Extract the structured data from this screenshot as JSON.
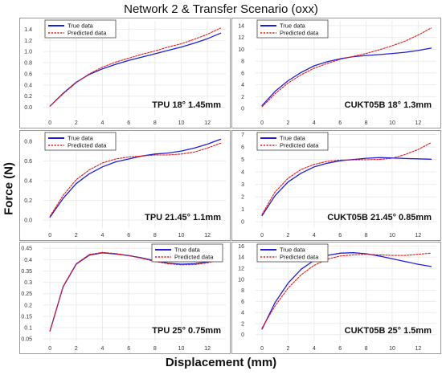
{
  "figure": {
    "title": "Network 2 & Transfer Scenario (oxx)",
    "ylabel": "Force (N)",
    "xlabel": "Displacement (mm)"
  },
  "colors": {
    "true_data": "#1f1fd6",
    "predicted_data": "#e01b1b",
    "border": "#9a9a9a",
    "grid": "#ebebeb"
  },
  "chart_data": [
    {
      "type": "line",
      "annotation": "TPU 18° 1.45mm",
      "xlim": [
        -0.5,
        13.4
      ],
      "ylim": [
        -0.15,
        1.55
      ],
      "xticks": [
        0,
        2,
        4,
        6,
        8,
        10,
        12
      ],
      "yticks": [
        0.0,
        0.2,
        0.4,
        0.6,
        0.8,
        1.0,
        1.2,
        1.4
      ],
      "ytick_labels": [
        "0.0",
        "0.2",
        "0.4",
        "0.6",
        "0.8",
        "1.0",
        "1.2",
        "1.4"
      ],
      "legend": "top-left",
      "series": [
        {
          "name": "True data",
          "style": "solid",
          "x": [
            0,
            1,
            2,
            3,
            4,
            5,
            6,
            7,
            8,
            9,
            10,
            11,
            12,
            13
          ],
          "y": [
            0.02,
            0.25,
            0.45,
            0.59,
            0.69,
            0.77,
            0.84,
            0.9,
            0.96,
            1.02,
            1.08,
            1.15,
            1.23,
            1.33
          ]
        },
        {
          "name": "Predicted data",
          "style": "dashed",
          "x": [
            0,
            1,
            2,
            3,
            4,
            5,
            6,
            7,
            8,
            9,
            10,
            11,
            12,
            13
          ],
          "y": [
            0.02,
            0.24,
            0.44,
            0.6,
            0.72,
            0.81,
            0.88,
            0.95,
            1.01,
            1.08,
            1.14,
            1.22,
            1.31,
            1.42
          ]
        }
      ]
    },
    {
      "type": "line",
      "annotation": "CUKT05B 18° 1.3mm",
      "xlim": [
        -0.5,
        13.4
      ],
      "ylim": [
        -1.2,
        14.8
      ],
      "xticks": [
        0,
        2,
        4,
        6,
        8,
        10,
        12
      ],
      "yticks": [
        0,
        2,
        4,
        6,
        8,
        10,
        12,
        14
      ],
      "ytick_labels": [
        "0",
        "2",
        "4",
        "6",
        "8",
        "10",
        "12",
        "14"
      ],
      "legend": "top-left",
      "series": [
        {
          "name": "True data",
          "style": "solid",
          "x": [
            0,
            1,
            2,
            3,
            4,
            5,
            6,
            7,
            8,
            9,
            10,
            11,
            12,
            13
          ],
          "y": [
            0.5,
            2.9,
            4.7,
            6.1,
            7.2,
            7.9,
            8.4,
            8.75,
            8.95,
            9.1,
            9.3,
            9.5,
            9.8,
            10.2
          ]
        },
        {
          "name": "Predicted data",
          "style": "dashed",
          "x": [
            0,
            1,
            2,
            3,
            4,
            5,
            6,
            7,
            8,
            9,
            10,
            11,
            12,
            13
          ],
          "y": [
            0.3,
            2.5,
            4.3,
            5.7,
            6.8,
            7.6,
            8.3,
            8.8,
            9.3,
            9.9,
            10.6,
            11.4,
            12.4,
            13.6
          ]
        }
      ]
    },
    {
      "type": "line",
      "annotation": "TPU 21.45° 1.1mm",
      "xlim": [
        -0.5,
        13.4
      ],
      "ylim": [
        -0.08,
        0.88
      ],
      "xticks": [
        0,
        2,
        4,
        6,
        8,
        10,
        12
      ],
      "yticks": [
        0.0,
        0.2,
        0.4,
        0.6,
        0.8
      ],
      "ytick_labels": [
        "0.0",
        "0.2",
        "0.4",
        "0.6",
        "0.8"
      ],
      "legend": "top-left",
      "series": [
        {
          "name": "True data",
          "style": "solid",
          "x": [
            0,
            1,
            2,
            3,
            4,
            5,
            6,
            7,
            8,
            9,
            10,
            11,
            12,
            13
          ],
          "y": [
            0.03,
            0.22,
            0.37,
            0.47,
            0.54,
            0.59,
            0.62,
            0.65,
            0.67,
            0.68,
            0.7,
            0.73,
            0.77,
            0.82
          ]
        },
        {
          "name": "Predicted data",
          "style": "dashed",
          "x": [
            0,
            1,
            2,
            3,
            4,
            5,
            6,
            7,
            8,
            9,
            10,
            11,
            12,
            13
          ],
          "y": [
            0.04,
            0.25,
            0.41,
            0.51,
            0.58,
            0.62,
            0.64,
            0.65,
            0.66,
            0.66,
            0.67,
            0.69,
            0.73,
            0.78
          ]
        }
      ]
    },
    {
      "type": "line",
      "annotation": "CUKT05B 21.45° 0.85mm",
      "xlim": [
        -0.5,
        13.4
      ],
      "ylim": [
        -0.5,
        7.1
      ],
      "xticks": [
        0,
        2,
        4,
        6,
        8,
        10,
        12
      ],
      "yticks": [
        0,
        1,
        2,
        3,
        4,
        5,
        6,
        7
      ],
      "ytick_labels": [
        "0",
        "1",
        "2",
        "3",
        "4",
        "5",
        "6",
        "7"
      ],
      "legend": "top-left",
      "series": [
        {
          "name": "True data",
          "style": "solid",
          "x": [
            0,
            1,
            2,
            3,
            4,
            5,
            6,
            7,
            8,
            9,
            10,
            11,
            12,
            13
          ],
          "y": [
            0.5,
            2.1,
            3.2,
            3.9,
            4.4,
            4.7,
            4.9,
            5.0,
            5.1,
            5.15,
            5.12,
            5.08,
            5.05,
            5.02
          ]
        },
        {
          "name": "Predicted data",
          "style": "dashed",
          "x": [
            0,
            1,
            2,
            3,
            4,
            5,
            6,
            7,
            8,
            9,
            10,
            11,
            12,
            13
          ],
          "y": [
            0.6,
            2.4,
            3.5,
            4.2,
            4.6,
            4.85,
            4.95,
            4.97,
            4.98,
            5.0,
            5.1,
            5.4,
            5.8,
            6.35
          ]
        }
      ]
    },
    {
      "type": "line",
      "annotation": "TPU 25° 0.75mm",
      "xlim": [
        -0.5,
        13.4
      ],
      "ylim": [
        0.04,
        0.465
      ],
      "xticks": [
        0,
        2,
        4,
        6,
        8,
        10,
        12
      ],
      "yticks": [
        0.05,
        0.1,
        0.15,
        0.2,
        0.25,
        0.3,
        0.35,
        0.4,
        0.45
      ],
      "ytick_labels": [
        "0.05",
        "0.1",
        "0.15",
        "0.2",
        "0.25",
        "0.3",
        "0.35",
        "0.4",
        "0.45"
      ],
      "legend": "top-right",
      "series": [
        {
          "name": "True data",
          "style": "solid",
          "x": [
            0,
            1,
            2,
            3,
            4,
            5,
            6,
            7,
            8,
            9,
            10,
            11,
            12,
            13
          ],
          "y": [
            0.085,
            0.28,
            0.38,
            0.42,
            0.43,
            0.425,
            0.418,
            0.408,
            0.395,
            0.385,
            0.38,
            0.382,
            0.39,
            0.4
          ]
        },
        {
          "name": "Predicted data",
          "style": "dashed",
          "x": [
            0,
            1,
            2,
            3,
            4,
            5,
            6,
            7,
            8,
            9,
            10,
            11,
            12,
            13
          ],
          "y": [
            0.085,
            0.282,
            0.382,
            0.423,
            0.432,
            0.427,
            0.418,
            0.406,
            0.392,
            0.382,
            0.377,
            0.378,
            0.386,
            0.398
          ]
        }
      ]
    },
    {
      "type": "line",
      "annotation": "CUKT05B 25° 1.5mm",
      "xlim": [
        -0.5,
        13.4
      ],
      "ylim": [
        -1.2,
        16.2
      ],
      "xticks": [
        0,
        2,
        4,
        6,
        8,
        10,
        12
      ],
      "yticks": [
        0,
        2,
        4,
        6,
        8,
        10,
        12,
        14,
        16
      ],
      "ytick_labels": [
        "0",
        "2",
        "4",
        "6",
        "8",
        "10",
        "12",
        "14",
        "16"
      ],
      "legend": "top-left",
      "series": [
        {
          "name": "True data",
          "style": "solid",
          "x": [
            0,
            1,
            2,
            3,
            4,
            5,
            6,
            7,
            8,
            9,
            10,
            11,
            12,
            13
          ],
          "y": [
            1.0,
            5.8,
            9.3,
            11.8,
            13.4,
            14.3,
            14.7,
            14.8,
            14.6,
            14.2,
            13.7,
            13.2,
            12.7,
            12.3
          ]
        },
        {
          "name": "Predicted data",
          "style": "dashed",
          "x": [
            0,
            1,
            2,
            3,
            4,
            5,
            6,
            7,
            8,
            9,
            10,
            11,
            12,
            13
          ],
          "y": [
            1.2,
            5.2,
            8.4,
            10.8,
            12.5,
            13.6,
            14.2,
            14.4,
            14.5,
            14.4,
            14.3,
            14.3,
            14.5,
            14.7
          ]
        }
      ]
    }
  ]
}
